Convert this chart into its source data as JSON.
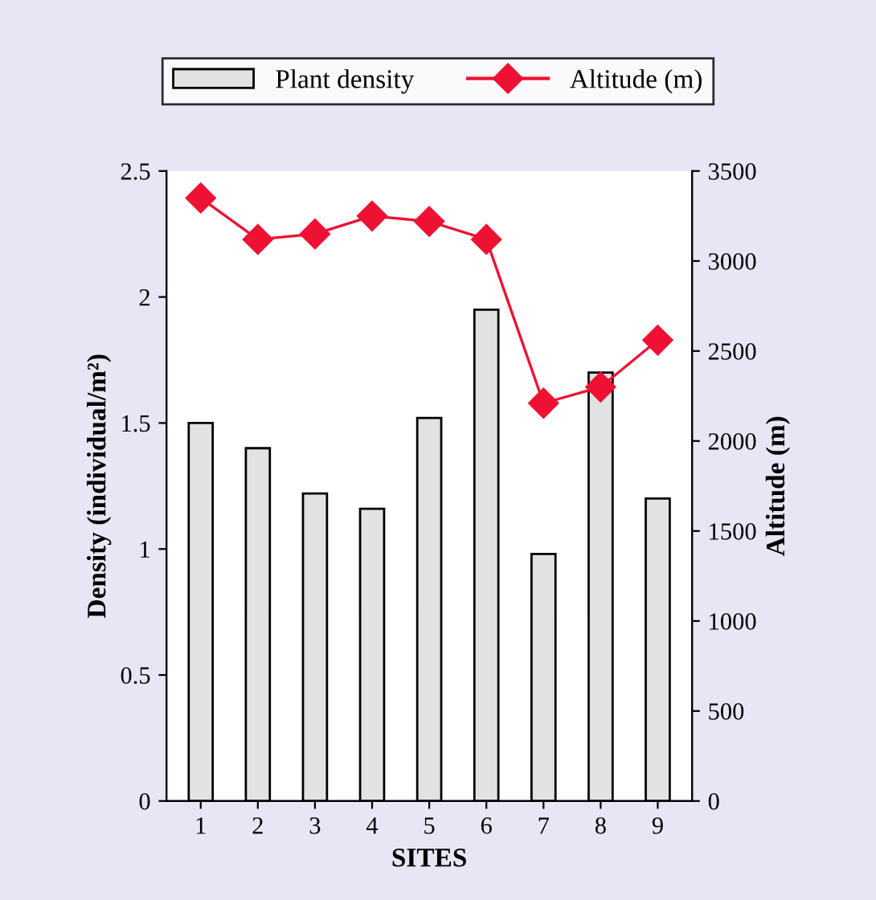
{
  "chart_data": {
    "type": "bar",
    "xlabel": "SITES",
    "ylabel": "Density (individual/m²)",
    "y2label": "Altitude (m)",
    "categories": [
      "1",
      "2",
      "3",
      "4",
      "5",
      "6",
      "7",
      "8",
      "9"
    ],
    "series": [
      {
        "name": "Plant density",
        "color": "#e2e2e2",
        "values": [
          1.5,
          1.4,
          1.22,
          1.16,
          1.52,
          1.95,
          0.98,
          1.7,
          1.2
        ]
      },
      {
        "name": "Altitude (m)",
        "type": "line",
        "axis": "y2",
        "color": "#ee1133",
        "marker": "diamond",
        "values": [
          3350,
          3120,
          3150,
          3250,
          3220,
          3120,
          2210,
          2300,
          2560
        ]
      }
    ],
    "ylim": [
      0,
      2.5
    ],
    "yticks": [
      0,
      0.5,
      1,
      1.5,
      2,
      2.5
    ],
    "y2lim": [
      0,
      3500
    ],
    "y2ticks": [
      0,
      500,
      1000,
      1500,
      2000,
      2500,
      3000,
      3500
    ],
    "grid": false,
    "legend": "top"
  }
}
